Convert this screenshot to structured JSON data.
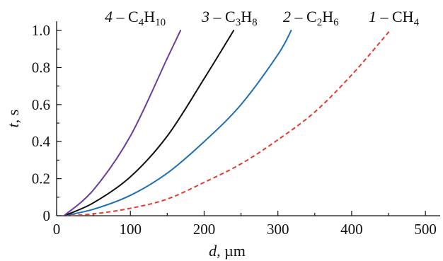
{
  "chart_data": {
    "type": "line",
    "xlabel": {
      "var": "d",
      "rest": ", µm"
    },
    "ylabel": {
      "var": "t",
      "rest": ", s"
    },
    "xlim": [
      0,
      520
    ],
    "ylim": [
      0,
      1.05
    ],
    "x_ticks": [
      0,
      100,
      200,
      300,
      400,
      500
    ],
    "x_tick_labels": [
      "0",
      "100",
      "200",
      "300",
      "400",
      "500"
    ],
    "y_ticks": [
      0,
      0.2,
      0.4,
      0.6,
      0.8,
      1.0
    ],
    "y_tick_labels": [
      "0",
      "0.2",
      "0.4",
      "0.6",
      "0.8",
      "1.0"
    ],
    "grid": false,
    "legend_position": "top (labels at curve ends)",
    "series": [
      {
        "id": "1",
        "label": {
          "num": "1",
          "dash": " – ",
          "formula": [
            [
              "CH",
              ""
            ],
            [
              "4",
              "sub"
            ]
          ]
        },
        "color": "#e8392c",
        "dashed": true,
        "x": [
          10,
          50,
          100,
          150,
          200,
          250,
          300,
          350,
          400,
          452
        ],
        "y": [
          0,
          0.01,
          0.04,
          0.09,
          0.18,
          0.28,
          0.41,
          0.56,
          0.76,
          1.0
        ]
      },
      {
        "id": "2",
        "label": {
          "num": "2",
          "dash": " – ",
          "formula": [
            [
              "C",
              ""
            ],
            [
              "2",
              "sub"
            ],
            [
              "H",
              ""
            ],
            [
              "6",
              "sub"
            ]
          ]
        },
        "color": "#1f6fb5",
        "dashed": false,
        "x": [
          10,
          50,
          100,
          150,
          200,
          250,
          300,
          318
        ],
        "y": [
          0,
          0.035,
          0.11,
          0.23,
          0.4,
          0.6,
          0.87,
          1.0
        ]
      },
      {
        "id": "3",
        "label": {
          "num": "3",
          "dash": " – ",
          "formula": [
            [
              "C",
              ""
            ],
            [
              "3",
              "sub"
            ],
            [
              "H",
              ""
            ],
            [
              "8",
              "sub"
            ]
          ]
        },
        "color": "#111111",
        "dashed": false,
        "x": [
          10,
          50,
          100,
          150,
          200,
          240
        ],
        "y": [
          0,
          0.07,
          0.21,
          0.43,
          0.74,
          1.0
        ]
      },
      {
        "id": "4",
        "label": {
          "num": "4",
          "dash": " – ",
          "formula": [
            [
              "C",
              ""
            ],
            [
              "4",
              "sub"
            ],
            [
              "H",
              ""
            ],
            [
              "10",
              "sub"
            ]
          ]
        },
        "color": "#6a3d9a",
        "dashed": false,
        "x": [
          10,
          50,
          100,
          150,
          168
        ],
        "y": [
          0,
          0.14,
          0.43,
          0.85,
          1.0
        ]
      }
    ]
  }
}
